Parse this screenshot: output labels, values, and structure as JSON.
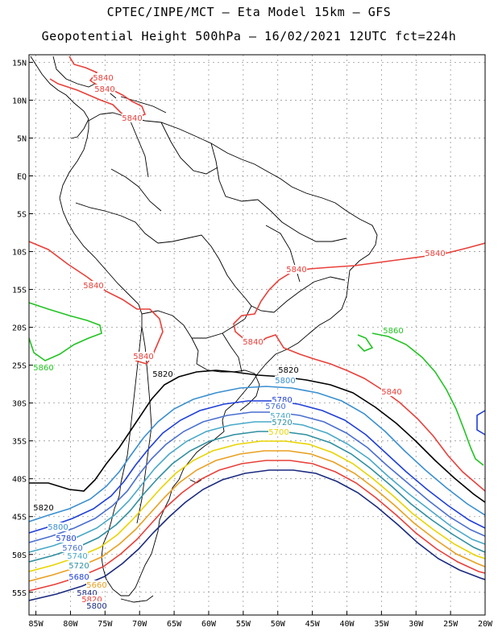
{
  "title_line1": "CPTEC/INPE/MCT –  Eta Model 15km – GFS",
  "title_line2": "Geopotential Height 500hPa – 16/02/2021 12UTC fct=224h",
  "lat_ticks": [
    "15N",
    "10N",
    "5N",
    "EQ",
    "5S",
    "10S",
    "15S",
    "20S",
    "25S",
    "30S",
    "35S",
    "40S",
    "45S",
    "50S",
    "55S"
  ],
  "lon_ticks": [
    "85W",
    "80W",
    "75W",
    "70W",
    "65W",
    "60W",
    "55W",
    "50W",
    "45W",
    "40W",
    "35W",
    "30W",
    "25W",
    "20W"
  ],
  "contour_labels": [
    {
      "text": "5840",
      "color": "#e8403a"
    },
    {
      "text": "5840",
      "color": "#e8403a"
    },
    {
      "text": "5840",
      "color": "#e8403a"
    },
    {
      "text": "5840",
      "color": "#e8403a"
    },
    {
      "text": "5840",
      "color": "#e8403a"
    },
    {
      "text": "5840",
      "color": "#e8403a"
    },
    {
      "text": "5840",
      "color": "#e8403a"
    },
    {
      "text": "5840",
      "color": "#e8403a"
    },
    {
      "text": "5840",
      "color": "#e8403a"
    },
    {
      "text": "5860",
      "color": "#22c322"
    },
    {
      "text": "5860",
      "color": "#22c322"
    },
    {
      "text": "5820",
      "color": "#000000"
    },
    {
      "text": "5820",
      "color": "#000000"
    },
    {
      "text": "5820",
      "color": "#000000"
    },
    {
      "text": "5800",
      "color": "#3a8fd0"
    },
    {
      "text": "5800",
      "color": "#3a8fd0"
    },
    {
      "text": "5780",
      "color": "#1f3fd8"
    },
    {
      "text": "5780",
      "color": "#1f3fd8"
    },
    {
      "text": "5760",
      "color": "#4a6fd0"
    },
    {
      "text": "5760",
      "color": "#4a6fd0"
    },
    {
      "text": "5740",
      "color": "#49a8c8"
    },
    {
      "text": "5740",
      "color": "#49a8c8"
    },
    {
      "text": "5720",
      "color": "#2e8fa0"
    },
    {
      "text": "5720",
      "color": "#2e8fa0"
    },
    {
      "text": "5700",
      "color": "#e8d400"
    },
    {
      "text": "5680",
      "color": "#1f3fd8"
    },
    {
      "text": "5660",
      "color": "#e8a020"
    },
    {
      "text": "5840",
      "color": "#1a2a80"
    },
    {
      "text": "5820",
      "color": "#e8403a"
    },
    {
      "text": "5800",
      "color": "#1a2a80"
    }
  ],
  "contour_colors": {
    "red_5840": "#e8403a",
    "green_5860": "#22c322",
    "black_5820": "#000000",
    "blue_5800": "#3a8fd0",
    "blue_5780": "#1f3fd8",
    "navy": "#1a2a80",
    "yellow": "#e8d400",
    "orange": "#e8a020",
    "cyan": "#49a8c8"
  }
}
